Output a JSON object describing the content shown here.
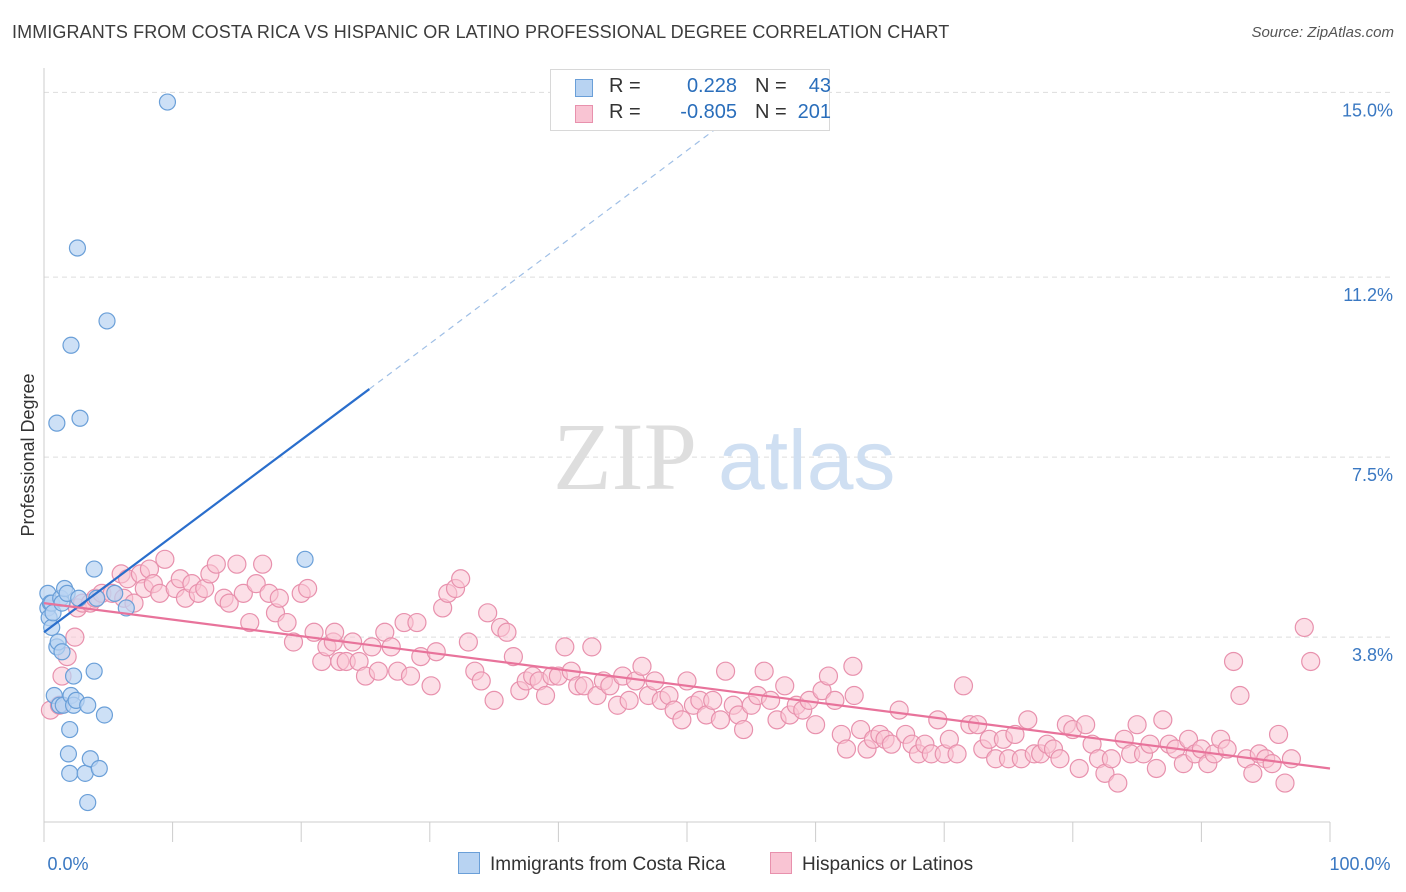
{
  "title": "IMMIGRANTS FROM COSTA RICA VS HISPANIC OR LATINO PROFESSIONAL DEGREE CORRELATION CHART",
  "source": "Source: ZipAtlas.com",
  "watermark": {
    "zip": "ZIP",
    "atlas": "atlas"
  },
  "colors": {
    "blue_fill": "#b8d3f2",
    "blue_stroke": "#6a9fd8",
    "blue_line": "#2a6ecc",
    "pink_fill": "#f9c4d3",
    "pink_stroke": "#e891ad",
    "pink_line": "#e8739b",
    "grid": "#dddddd",
    "tick_label": "#3a78c2"
  },
  "legend": {
    "rows": [
      {
        "r_label": "R =",
        "r_value": "0.228",
        "n_label": "N =",
        "n_value": "43"
      },
      {
        "r_label": "R =",
        "r_value": "-0.805",
        "n_label": "N =",
        "n_value": "201"
      }
    ]
  },
  "bottom_legend": {
    "series_a": "Immigrants from Costa Rica",
    "series_b": "Hispanics or Latinos"
  },
  "chart_data": {
    "type": "scatter",
    "title": "IMMIGRANTS FROM COSTA RICA VS HISPANIC OR LATINO PROFESSIONAL DEGREE CORRELATION CHART",
    "xlabel": "",
    "ylabel": "Professional Degree",
    "xlim": [
      0,
      100
    ],
    "ylim": [
      0,
      15.5
    ],
    "x_tick_labels": [
      {
        "value": 0,
        "label": "0.0%"
      },
      {
        "value": 100,
        "label": "100.0%"
      }
    ],
    "y_tick_labels": [
      {
        "value": 3.8,
        "label": "3.8%"
      },
      {
        "value": 7.5,
        "label": "7.5%"
      },
      {
        "value": 11.2,
        "label": "11.2%"
      },
      {
        "value": 15.0,
        "label": "15.0%"
      }
    ],
    "y_grid": [
      3.8,
      7.5,
      11.2,
      15.0
    ],
    "grid": true,
    "legend_position": "top-center",
    "series": [
      {
        "name": "Immigrants from Costa Rica",
        "color": "blue",
        "R": 0.228,
        "N": 43,
        "trend": {
          "x0": 0,
          "y0": 3.9,
          "x1": 25.3,
          "y1": 8.9,
          "dashed_to_x": 53,
          "dashed_to_y": 14.4
        },
        "points": [
          [
            0.3,
            4.7
          ],
          [
            0.3,
            4.4
          ],
          [
            0.4,
            4.2
          ],
          [
            0.5,
            4.5
          ],
          [
            0.6,
            4.5
          ],
          [
            0.6,
            4.0
          ],
          [
            0.7,
            4.3
          ],
          [
            0.8,
            2.6
          ],
          [
            1.0,
            3.6
          ],
          [
            1.0,
            8.2
          ],
          [
            1.1,
            3.7
          ],
          [
            1.2,
            2.4
          ],
          [
            1.3,
            4.6
          ],
          [
            1.4,
            4.5
          ],
          [
            1.4,
            3.5
          ],
          [
            1.5,
            2.4
          ],
          [
            1.6,
            4.8
          ],
          [
            1.8,
            4.7
          ],
          [
            1.9,
            1.4
          ],
          [
            2.0,
            1.9
          ],
          [
            2.0,
            1.0
          ],
          [
            2.1,
            2.6
          ],
          [
            2.1,
            9.8
          ],
          [
            2.3,
            2.4
          ],
          [
            2.3,
            3.0
          ],
          [
            2.5,
            2.5
          ],
          [
            2.6,
            11.8
          ],
          [
            2.7,
            4.6
          ],
          [
            2.8,
            8.3
          ],
          [
            3.2,
            1.0
          ],
          [
            3.4,
            2.4
          ],
          [
            3.4,
            0.4
          ],
          [
            3.6,
            1.3
          ],
          [
            3.9,
            5.2
          ],
          [
            3.9,
            3.1
          ],
          [
            4.1,
            4.6
          ],
          [
            4.3,
            1.1
          ],
          [
            4.7,
            2.2
          ],
          [
            4.9,
            10.3
          ],
          [
            5.5,
            4.7
          ],
          [
            6.4,
            4.4
          ],
          [
            9.6,
            14.8
          ],
          [
            20.3,
            5.4
          ]
        ]
      },
      {
        "name": "Hispanics or Latinos",
        "color": "pink",
        "R": -0.805,
        "N": 201,
        "trend": {
          "x0": 0,
          "y0": 4.5,
          "x1": 100,
          "y1": 1.1
        },
        "points": [
          [
            0.5,
            2.3
          ],
          [
            1.2,
            2.4
          ],
          [
            1.4,
            3.0
          ],
          [
            1.8,
            3.4
          ],
          [
            2.4,
            3.8
          ],
          [
            2.6,
            4.4
          ],
          [
            3.0,
            4.5
          ],
          [
            3.6,
            4.5
          ],
          [
            4.0,
            4.6
          ],
          [
            4.5,
            4.7
          ],
          [
            5.3,
            4.7
          ],
          [
            6.0,
            5.1
          ],
          [
            6.2,
            4.6
          ],
          [
            6.5,
            5.0
          ],
          [
            7.0,
            4.5
          ],
          [
            7.5,
            5.1
          ],
          [
            7.8,
            4.8
          ],
          [
            8.2,
            5.2
          ],
          [
            8.5,
            4.9
          ],
          [
            9.0,
            4.7
          ],
          [
            9.4,
            5.4
          ],
          [
            10.2,
            4.8
          ],
          [
            10.6,
            5.0
          ],
          [
            11.0,
            4.6
          ],
          [
            11.5,
            4.9
          ],
          [
            12.0,
            4.7
          ],
          [
            12.5,
            4.8
          ],
          [
            12.9,
            5.1
          ],
          [
            13.4,
            5.3
          ],
          [
            14.0,
            4.6
          ],
          [
            14.4,
            4.5
          ],
          [
            15.0,
            5.3
          ],
          [
            15.5,
            4.7
          ],
          [
            16.0,
            4.1
          ],
          [
            16.5,
            4.9
          ],
          [
            17.0,
            5.3
          ],
          [
            17.5,
            4.7
          ],
          [
            18.0,
            4.3
          ],
          [
            18.3,
            4.6
          ],
          [
            18.9,
            4.1
          ],
          [
            19.4,
            3.7
          ],
          [
            20.0,
            4.7
          ],
          [
            20.5,
            4.8
          ],
          [
            21.0,
            3.9
          ],
          [
            21.6,
            3.3
          ],
          [
            22.0,
            3.6
          ],
          [
            22.5,
            3.7
          ],
          [
            22.6,
            3.9
          ],
          [
            23.0,
            3.3
          ],
          [
            23.5,
            3.3
          ],
          [
            24.0,
            3.7
          ],
          [
            24.5,
            3.3
          ],
          [
            25.0,
            3.0
          ],
          [
            25.5,
            3.6
          ],
          [
            26.0,
            3.1
          ],
          [
            26.5,
            3.9
          ],
          [
            27.0,
            3.6
          ],
          [
            27.5,
            3.1
          ],
          [
            28.0,
            4.1
          ],
          [
            28.5,
            3.0
          ],
          [
            29.0,
            4.1
          ],
          [
            29.3,
            3.4
          ],
          [
            30.1,
            2.8
          ],
          [
            30.5,
            3.5
          ],
          [
            31.0,
            4.4
          ],
          [
            31.4,
            4.7
          ],
          [
            32.0,
            4.8
          ],
          [
            32.4,
            5.0
          ],
          [
            33.0,
            3.7
          ],
          [
            33.5,
            3.1
          ],
          [
            34.0,
            2.9
          ],
          [
            34.5,
            4.3
          ],
          [
            35.0,
            2.5
          ],
          [
            35.5,
            4.0
          ],
          [
            36.0,
            3.9
          ],
          [
            36.5,
            3.4
          ],
          [
            37.0,
            2.7
          ],
          [
            37.5,
            2.9
          ],
          [
            38.0,
            3.0
          ],
          [
            38.5,
            2.9
          ],
          [
            39.0,
            2.6
          ],
          [
            39.5,
            3.0
          ],
          [
            40.0,
            3.0
          ],
          [
            40.5,
            3.6
          ],
          [
            41.0,
            3.1
          ],
          [
            41.5,
            2.8
          ],
          [
            42.0,
            2.8
          ],
          [
            42.6,
            3.6
          ],
          [
            43.0,
            2.6
          ],
          [
            43.5,
            2.9
          ],
          [
            44.0,
            2.8
          ],
          [
            44.6,
            2.4
          ],
          [
            45.0,
            3.0
          ],
          [
            45.5,
            2.5
          ],
          [
            46.0,
            2.9
          ],
          [
            46.5,
            3.2
          ],
          [
            47.0,
            2.6
          ],
          [
            47.5,
            2.9
          ],
          [
            48.0,
            2.5
          ],
          [
            48.6,
            2.6
          ],
          [
            49.0,
            2.3
          ],
          [
            49.6,
            2.1
          ],
          [
            50.0,
            2.9
          ],
          [
            50.5,
            2.4
          ],
          [
            51.0,
            2.5
          ],
          [
            51.5,
            2.2
          ],
          [
            52.0,
            2.5
          ],
          [
            52.6,
            2.1
          ],
          [
            53.0,
            3.1
          ],
          [
            53.6,
            2.4
          ],
          [
            54.0,
            2.2
          ],
          [
            54.4,
            1.9
          ],
          [
            55.0,
            2.4
          ],
          [
            55.5,
            2.6
          ],
          [
            56.0,
            3.1
          ],
          [
            56.5,
            2.5
          ],
          [
            57.0,
            2.1
          ],
          [
            57.6,
            2.8
          ],
          [
            58.0,
            2.2
          ],
          [
            58.5,
            2.4
          ],
          [
            59.0,
            2.3
          ],
          [
            59.5,
            2.5
          ],
          [
            60.0,
            2.0
          ],
          [
            60.5,
            2.7
          ],
          [
            61.0,
            3.0
          ],
          [
            61.5,
            2.5
          ],
          [
            62.0,
            1.8
          ],
          [
            62.4,
            1.5
          ],
          [
            62.9,
            3.2
          ],
          [
            63.0,
            2.6
          ],
          [
            63.5,
            1.9
          ],
          [
            64.0,
            1.5
          ],
          [
            64.5,
            1.7
          ],
          [
            65.0,
            1.8
          ],
          [
            65.4,
            1.7
          ],
          [
            65.9,
            1.6
          ],
          [
            66.5,
            2.3
          ],
          [
            67.0,
            1.8
          ],
          [
            67.5,
            1.6
          ],
          [
            68.0,
            1.4
          ],
          [
            68.5,
            1.6
          ],
          [
            69.0,
            1.4
          ],
          [
            69.5,
            2.1
          ],
          [
            70.0,
            1.4
          ],
          [
            70.4,
            1.7
          ],
          [
            71.0,
            1.4
          ],
          [
            71.5,
            2.8
          ],
          [
            72.0,
            2.0
          ],
          [
            72.6,
            2.0
          ],
          [
            73.0,
            1.5
          ],
          [
            73.5,
            1.7
          ],
          [
            74.0,
            1.3
          ],
          [
            74.6,
            1.7
          ],
          [
            75.0,
            1.3
          ],
          [
            75.5,
            1.8
          ],
          [
            76.0,
            1.3
          ],
          [
            76.5,
            2.1
          ],
          [
            77.0,
            1.4
          ],
          [
            77.5,
            1.4
          ],
          [
            78.0,
            1.6
          ],
          [
            78.5,
            1.5
          ],
          [
            79.0,
            1.3
          ],
          [
            79.5,
            2.0
          ],
          [
            80.0,
            1.9
          ],
          [
            80.5,
            1.1
          ],
          [
            81.0,
            2.0
          ],
          [
            81.5,
            1.6
          ],
          [
            82.0,
            1.3
          ],
          [
            82.5,
            1.0
          ],
          [
            83.0,
            1.3
          ],
          [
            83.5,
            0.8
          ],
          [
            84.0,
            1.7
          ],
          [
            84.5,
            1.4
          ],
          [
            85.0,
            2.0
          ],
          [
            85.5,
            1.4
          ],
          [
            86.0,
            1.6
          ],
          [
            86.5,
            1.1
          ],
          [
            87.0,
            2.1
          ],
          [
            87.5,
            1.6
          ],
          [
            88.0,
            1.5
          ],
          [
            88.6,
            1.2
          ],
          [
            89.0,
            1.7
          ],
          [
            89.5,
            1.4
          ],
          [
            90.0,
            1.5
          ],
          [
            90.5,
            1.2
          ],
          [
            91.0,
            1.4
          ],
          [
            91.5,
            1.7
          ],
          [
            92.0,
            1.5
          ],
          [
            92.5,
            3.3
          ],
          [
            93.0,
            2.6
          ],
          [
            93.5,
            1.3
          ],
          [
            94.0,
            1.0
          ],
          [
            94.5,
            1.4
          ],
          [
            95.0,
            1.3
          ],
          [
            95.5,
            1.2
          ],
          [
            96.0,
            1.8
          ],
          [
            96.5,
            0.8
          ],
          [
            97.0,
            1.3
          ],
          [
            98.0,
            4.0
          ],
          [
            98.5,
            3.3
          ]
        ]
      }
    ]
  }
}
